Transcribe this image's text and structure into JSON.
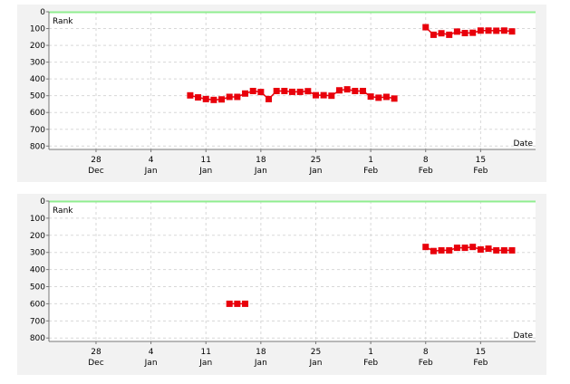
{
  "colors": {
    "marker": "#e8000b",
    "line": "#e8000b",
    "grid": "#d8d8d8",
    "top_band": "#90ee90",
    "panel_bg": "#f2f2f2",
    "plot_bg": "#ffffff"
  },
  "chart_data": [
    {
      "type": "line",
      "xlabel": "Date",
      "ylabel": "Rank",
      "ylim": [
        0,
        820
      ],
      "yticks": [
        0,
        100,
        200,
        300,
        400,
        500,
        600,
        700,
        800
      ],
      "xlim": [
        "2010-12-22",
        "2011-02-22"
      ],
      "xticks": [
        {
          "date": "2010-12-28",
          "day": "28",
          "month": "Dec"
        },
        {
          "date": "2011-01-04",
          "day": "4",
          "month": "Jan"
        },
        {
          "date": "2011-01-11",
          "day": "11",
          "month": "Jan"
        },
        {
          "date": "2011-01-18",
          "day": "18",
          "month": "Jan"
        },
        {
          "date": "2011-01-25",
          "day": "25",
          "month": "Jan"
        },
        {
          "date": "2011-02-01",
          "day": "1",
          "month": "Feb"
        },
        {
          "date": "2011-02-08",
          "day": "8",
          "month": "Feb"
        },
        {
          "date": "2011-02-15",
          "day": "15",
          "month": "Feb"
        }
      ],
      "grid": true,
      "series": [
        {
          "segments": [
            [
              {
                "x": "2011-01-09",
                "y": 498
              },
              {
                "x": "2011-01-10",
                "y": 510
              },
              {
                "x": "2011-01-11",
                "y": 520
              },
              {
                "x": "2011-01-12",
                "y": 525
              },
              {
                "x": "2011-01-13",
                "y": 522
              },
              {
                "x": "2011-01-14",
                "y": 507
              },
              {
                "x": "2011-01-15",
                "y": 507
              },
              {
                "x": "2011-01-16",
                "y": 487
              },
              {
                "x": "2011-01-17",
                "y": 472
              },
              {
                "x": "2011-01-18",
                "y": 478
              },
              {
                "x": "2011-01-19",
                "y": 520
              },
              {
                "x": "2011-01-20",
                "y": 472
              },
              {
                "x": "2011-01-21",
                "y": 472
              },
              {
                "x": "2011-01-22",
                "y": 477
              },
              {
                "x": "2011-01-23",
                "y": 477
              },
              {
                "x": "2011-01-24",
                "y": 473
              },
              {
                "x": "2011-01-25",
                "y": 497
              },
              {
                "x": "2011-01-26",
                "y": 497
              },
              {
                "x": "2011-01-27",
                "y": 500
              },
              {
                "x": "2011-01-28",
                "y": 468
              },
              {
                "x": "2011-01-29",
                "y": 462
              },
              {
                "x": "2011-01-30",
                "y": 472
              },
              {
                "x": "2011-01-31",
                "y": 472
              },
              {
                "x": "2011-02-01",
                "y": 505
              },
              {
                "x": "2011-02-02",
                "y": 512
              },
              {
                "x": "2011-02-03",
                "y": 507
              },
              {
                "x": "2011-02-04",
                "y": 517
              }
            ],
            [
              {
                "x": "2011-02-08",
                "y": 92
              },
              {
                "x": "2011-02-09",
                "y": 137
              },
              {
                "x": "2011-02-10",
                "y": 128
              },
              {
                "x": "2011-02-11",
                "y": 137
              },
              {
                "x": "2011-02-12",
                "y": 118
              },
              {
                "x": "2011-02-13",
                "y": 127
              },
              {
                "x": "2011-02-14",
                "y": 125
              },
              {
                "x": "2011-02-15",
                "y": 112
              },
              {
                "x": "2011-02-16",
                "y": 112
              },
              {
                "x": "2011-02-17",
                "y": 113
              },
              {
                "x": "2011-02-18",
                "y": 112
              },
              {
                "x": "2011-02-19",
                "y": 117
              }
            ]
          ]
        }
      ]
    },
    {
      "type": "line",
      "xlabel": "Date",
      "ylabel": "Rank",
      "ylim": [
        0,
        820
      ],
      "yticks": [
        0,
        100,
        200,
        300,
        400,
        500,
        600,
        700,
        800
      ],
      "xlim": [
        "2010-12-22",
        "2011-02-22"
      ],
      "xticks": [
        {
          "date": "2010-12-28",
          "day": "28",
          "month": "Dec"
        },
        {
          "date": "2011-01-04",
          "day": "4",
          "month": "Jan"
        },
        {
          "date": "2011-01-11",
          "day": "11",
          "month": "Jan"
        },
        {
          "date": "2011-01-18",
          "day": "18",
          "month": "Jan"
        },
        {
          "date": "2011-01-25",
          "day": "25",
          "month": "Jan"
        },
        {
          "date": "2011-02-01",
          "day": "1",
          "month": "Feb"
        },
        {
          "date": "2011-02-08",
          "day": "8",
          "month": "Feb"
        },
        {
          "date": "2011-02-15",
          "day": "15",
          "month": "Feb"
        }
      ],
      "grid": true,
      "series": [
        {
          "segments": [
            [
              {
                "x": "2011-01-14",
                "y": 600
              },
              {
                "x": "2011-01-15",
                "y": 600
              },
              {
                "x": "2011-01-16",
                "y": 600
              }
            ],
            [
              {
                "x": "2011-02-08",
                "y": 268
              },
              {
                "x": "2011-02-09",
                "y": 292
              },
              {
                "x": "2011-02-10",
                "y": 288
              },
              {
                "x": "2011-02-11",
                "y": 288
              },
              {
                "x": "2011-02-12",
                "y": 273
              },
              {
                "x": "2011-02-13",
                "y": 273
              },
              {
                "x": "2011-02-14",
                "y": 268
              },
              {
                "x": "2011-02-15",
                "y": 283
              },
              {
                "x": "2011-02-16",
                "y": 278
              },
              {
                "x": "2011-02-17",
                "y": 288
              },
              {
                "x": "2011-02-18",
                "y": 288
              },
              {
                "x": "2011-02-19",
                "y": 288
              }
            ]
          ]
        }
      ]
    }
  ]
}
